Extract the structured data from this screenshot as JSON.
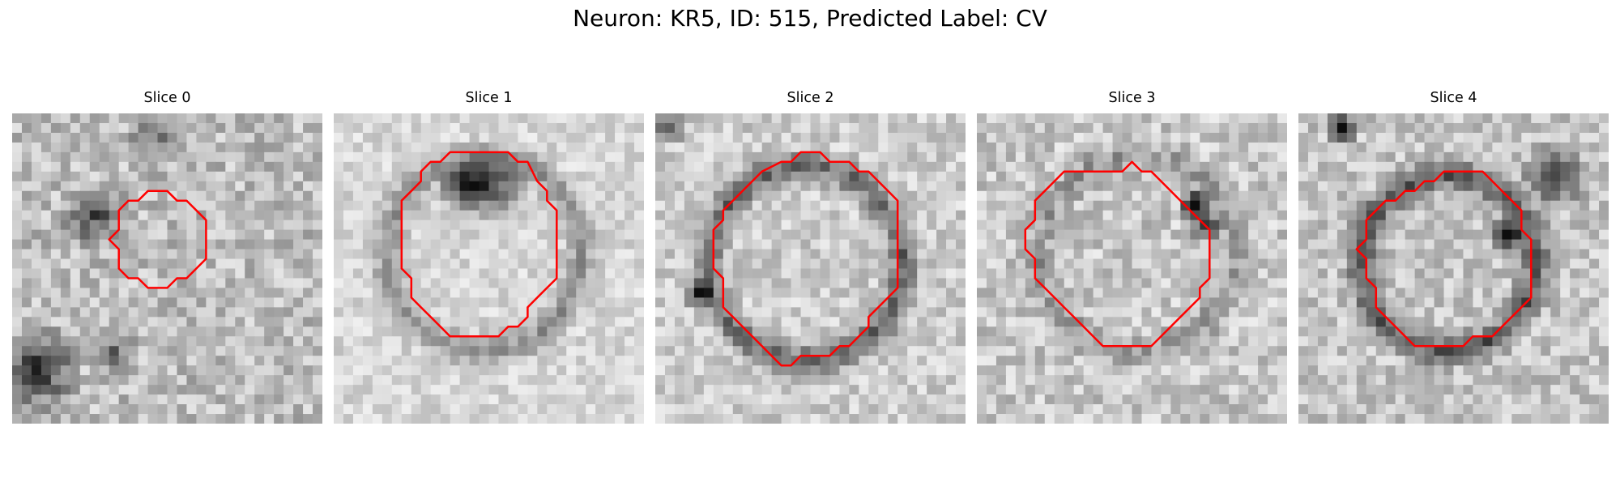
{
  "figure": {
    "title": "Neuron: KR5, ID: 515, Predicted Label: CV",
    "contour_color": "#ff0000",
    "colormap": "gray"
  },
  "panels": [
    {
      "title": "Slice 0"
    },
    {
      "title": "Slice 1"
    },
    {
      "title": "Slice 2"
    },
    {
      "title": "Slice 3"
    },
    {
      "title": "Slice 4"
    }
  ]
}
